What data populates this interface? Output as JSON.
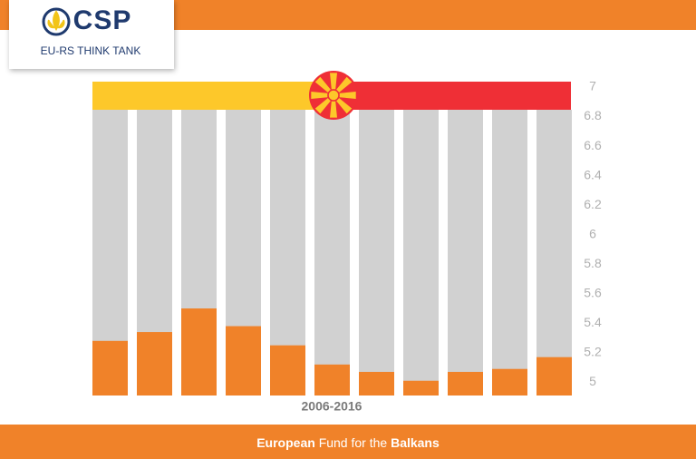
{
  "header": {
    "logo": "CSP",
    "tagline": "EU-RS THINK TANK"
  },
  "footer": {
    "first": "European",
    "middle": "Fund for the",
    "last": "Balkans"
  },
  "chart_data": {
    "type": "bar",
    "x_label": "2006-2016",
    "categories": [
      null,
      null,
      null,
      null,
      null,
      null,
      null,
      null,
      null,
      null,
      null
    ],
    "values": [
      5.28,
      5.34,
      5.5,
      5.38,
      5.25,
      5.12,
      5.07,
      5.01,
      5.07,
      5.09,
      5.17
    ],
    "color": "#f08229",
    "ylim": [
      4.91,
      7
    ],
    "yticks": [
      5,
      5.2,
      5.4,
      5.6,
      5.8,
      6,
      6.2,
      6.4,
      6.6,
      6.8,
      7
    ]
  }
}
